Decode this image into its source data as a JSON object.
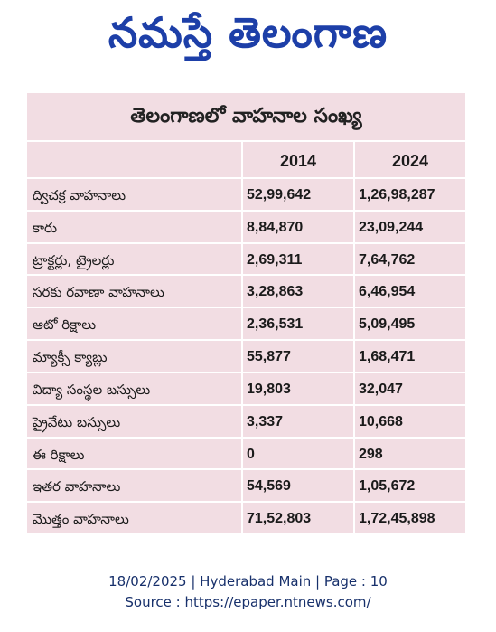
{
  "masthead": "నమస్తే తెలంగాణ",
  "table": {
    "title": "తెలంగాణలో వాహనాల సంఖ్య",
    "header": [
      "2014",
      "2024"
    ],
    "rows": [
      [
        "ద్విచక్ర వాహనాలు",
        "52,99,642",
        "1,26,98,287"
      ],
      [
        "కారు",
        "8,84,870",
        "23,09,244"
      ],
      [
        "ట్రాక్టర్లు, ట్రైలర్లు",
        "2,69,311",
        "7,64,762"
      ],
      [
        "సరకు రవాణా వాహనాలు",
        "3,28,863",
        "6,46,954"
      ],
      [
        "ఆటో రిక్షాలు",
        "2,36,531",
        "5,09,495"
      ],
      [
        "మ్యాక్సీ క్యాబ్లు",
        "55,877",
        "1,68,471"
      ],
      [
        "విద్యా సంస్థల బస్సులు",
        "19,803",
        "32,047"
      ],
      [
        "ప్రైవేటు బస్సులు",
        "3,337",
        "10,668"
      ],
      [
        "ఈ రిక్షాలు",
        "0",
        "298"
      ],
      [
        "ఇతర వాహనాలు",
        "54,569",
        "1,05,672"
      ],
      [
        "మొత్తం వాహనాలు",
        "71,52,803",
        "1,72,45,898"
      ]
    ]
  },
  "footer": [
    "18/02/2025 | Hyderabad Main | Page : 10",
    "Source : https://epaper.ntnews.com/"
  ]
}
